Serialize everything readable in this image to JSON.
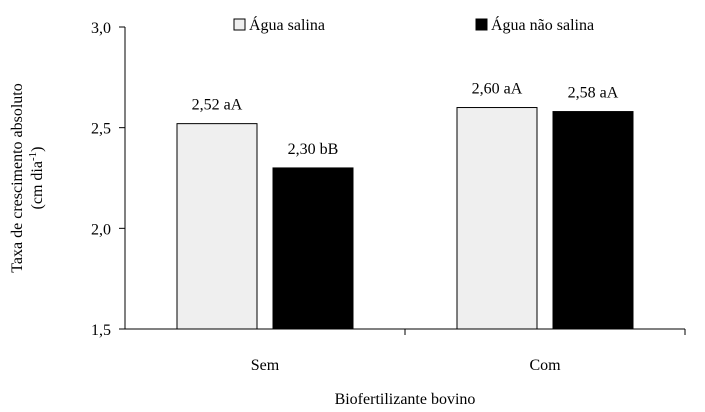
{
  "chart_data": {
    "type": "bar",
    "categories": [
      "Sem",
      "Com"
    ],
    "series": [
      {
        "name": "Água salina",
        "values": [
          2.52,
          2.6
        ],
        "color": "#efefef",
        "data_labels": [
          "2,52 aA",
          "2,60 aA"
        ]
      },
      {
        "name": "Água não salina",
        "values": [
          2.3,
          2.58
        ],
        "color": "#000000",
        "data_labels": [
          "2,30 bB",
          "2,58 aA"
        ]
      }
    ],
    "xlabel": "Biofertilizante bovino",
    "ylabel_line1": "Taxa de crescimento  absoluto",
    "ylabel_line2_pre": "(cm  dia",
    "ylabel_line2_sup": "-1",
    "ylabel_line2_post": ")",
    "ylim": [
      1.5,
      3.0
    ],
    "yticks": [
      1.5,
      2.0,
      2.5,
      3.0
    ],
    "ytick_labels": [
      "1,5",
      "2,0",
      "2,5",
      "3,0"
    ],
    "grid": false,
    "legend_position": "top"
  }
}
